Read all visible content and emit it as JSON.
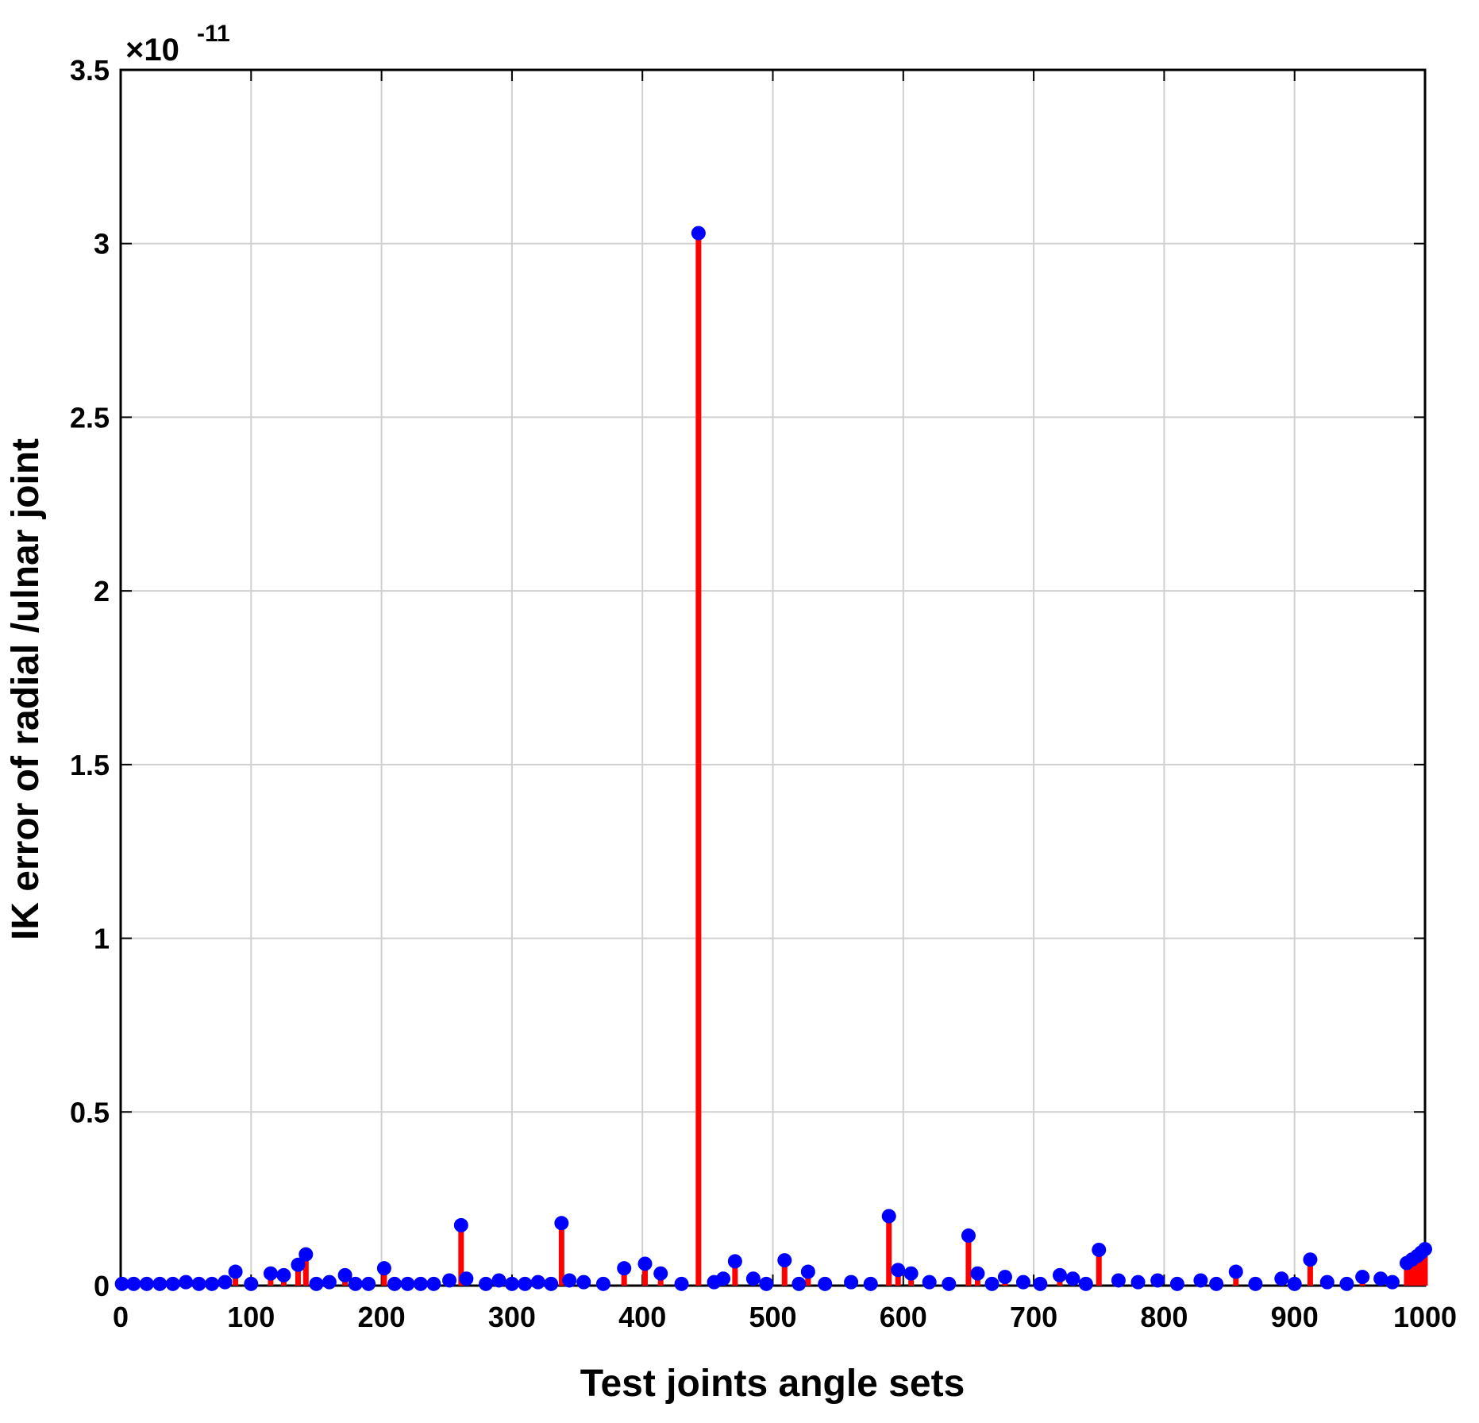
{
  "chart_data": {
    "type": "stem",
    "xlabel": "Test joints angle sets",
    "ylabel": "IK error of radial /ulnar joint",
    "y_multiplier": {
      "base": "×10",
      "exponent": "-11"
    },
    "xlim": [
      0,
      1000
    ],
    "xticks": [
      0,
      100,
      200,
      300,
      400,
      500,
      600,
      700,
      800,
      900,
      1000
    ],
    "ylim": [
      0,
      3.5
    ],
    "yticks": [
      0,
      0.5,
      1,
      1.5,
      2,
      2.5,
      3,
      3.5
    ],
    "grid": true,
    "stem_color": "#ff0000",
    "marker_color": "#0000ff",
    "x": [
      1,
      10,
      20,
      30,
      40,
      50,
      60,
      70,
      80,
      88,
      100,
      115,
      125,
      136,
      142,
      150,
      160,
      172,
      180,
      190,
      202,
      210,
      220,
      230,
      240,
      252,
      261,
      265,
      280,
      290,
      300,
      310,
      320,
      330,
      338,
      344,
      355,
      370,
      386,
      402,
      414,
      430,
      443,
      455,
      462,
      471,
      485,
      495,
      509,
      520,
      527,
      540,
      560,
      575,
      589,
      596,
      606,
      620,
      635,
      650,
      657,
      668,
      678,
      692,
      705,
      720,
      730,
      740,
      750,
      765,
      780,
      795,
      810,
      828,
      840,
      855,
      870,
      890,
      900,
      912,
      925,
      940,
      952,
      966,
      975,
      986,
      990,
      994,
      997,
      1000
    ],
    "values": [
      0.005,
      0.005,
      0.005,
      0.005,
      0.005,
      0.01,
      0.005,
      0.005,
      0.01,
      0.04,
      0.005,
      0.035,
      0.03,
      0.06,
      0.09,
      0.005,
      0.01,
      0.03,
      0.005,
      0.005,
      0.05,
      0.005,
      0.005,
      0.005,
      0.005,
      0.015,
      0.174,
      0.02,
      0.005,
      0.015,
      0.005,
      0.005,
      0.01,
      0.005,
      0.18,
      0.015,
      0.01,
      0.005,
      0.05,
      0.063,
      0.035,
      0.005,
      3.03,
      0.01,
      0.02,
      0.07,
      0.02,
      0.005,
      0.073,
      0.005,
      0.04,
      0.005,
      0.01,
      0.005,
      0.2,
      0.045,
      0.035,
      0.01,
      0.005,
      0.144,
      0.035,
      0.005,
      0.025,
      0.01,
      0.005,
      0.03,
      0.02,
      0.005,
      0.103,
      0.015,
      0.01,
      0.015,
      0.005,
      0.015,
      0.005,
      0.04,
      0.005,
      0.02,
      0.005,
      0.075,
      0.01,
      0.005,
      0.025,
      0.02,
      0.01,
      0.065,
      0.075,
      0.085,
      0.095,
      0.105
    ]
  }
}
